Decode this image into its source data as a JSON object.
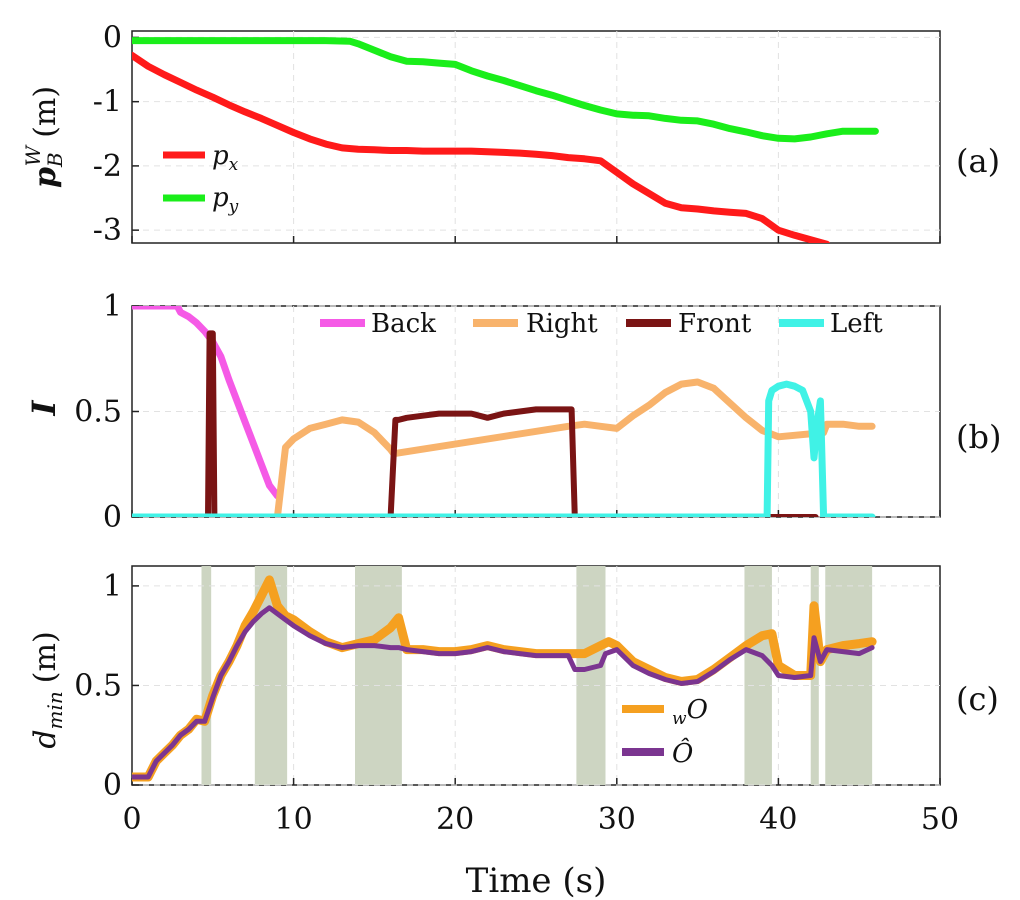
{
  "figure": {
    "xlabel": "Time (s)",
    "xticks": [
      "0",
      "10",
      "20",
      "30",
      "40",
      "50"
    ]
  },
  "colors": {
    "px": "#ff1a1a",
    "py": "#1aee1a",
    "back": "#f55ae6",
    "right": "#f8b36c",
    "front": "#7a1414",
    "left": "#40f2e6",
    "wO": "#f5a020",
    "Ohat": "#7b3590",
    "shade": "#cdd5c2"
  },
  "chart_data": [
    {
      "type": "line",
      "panel": "(a)",
      "ylabel_main": "p",
      "ylabel_sup": "W",
      "ylabel_sub": "B",
      "ylabel_unit": "(m)",
      "yticks": [
        "0",
        "-1",
        "-2",
        "-3"
      ],
      "ylim": [
        -3.2,
        0.1
      ],
      "xlim": [
        0,
        50
      ],
      "legend": {
        "placement": "left",
        "labels": [
          "p",
          "p"
        ],
        "subscripts": [
          "x",
          "y"
        ]
      },
      "series": [
        {
          "name": "p_x",
          "x": [
            0,
            1,
            2,
            3,
            4,
            5,
            6,
            7,
            8,
            9,
            10,
            11,
            12,
            13,
            14,
            15,
            16,
            17,
            18,
            19,
            20,
            21,
            22,
            23,
            24,
            25,
            26,
            27,
            28,
            29,
            30,
            31,
            32,
            33,
            34,
            35,
            36,
            37,
            38,
            39,
            40,
            41,
            42,
            43
          ],
          "y": [
            -0.28,
            -0.45,
            -0.58,
            -0.7,
            -0.82,
            -0.93,
            -1.05,
            -1.16,
            -1.26,
            -1.37,
            -1.48,
            -1.58,
            -1.66,
            -1.72,
            -1.74,
            -1.75,
            -1.76,
            -1.76,
            -1.77,
            -1.77,
            -1.77,
            -1.77,
            -1.78,
            -1.79,
            -1.8,
            -1.82,
            -1.84,
            -1.87,
            -1.89,
            -1.92,
            -2.1,
            -2.28,
            -2.43,
            -2.58,
            -2.65,
            -2.67,
            -2.7,
            -2.72,
            -2.74,
            -2.82,
            -3.0,
            -3.08,
            -3.15,
            -3.22
          ]
        },
        {
          "name": "p_y",
          "x": [
            0,
            4,
            8,
            12,
            13.5,
            14,
            15,
            16,
            17,
            18,
            19,
            20,
            21,
            22,
            23,
            24,
            25,
            26,
            27,
            28,
            29,
            30,
            31,
            32,
            33,
            34,
            35,
            36,
            37,
            38,
            39,
            40,
            41,
            42,
            43,
            44,
            45,
            46
          ],
          "y": [
            -0.05,
            -0.05,
            -0.05,
            -0.05,
            -0.06,
            -0.1,
            -0.2,
            -0.3,
            -0.37,
            -0.38,
            -0.4,
            -0.42,
            -0.52,
            -0.6,
            -0.67,
            -0.75,
            -0.83,
            -0.9,
            -0.98,
            -1.06,
            -1.13,
            -1.19,
            -1.21,
            -1.22,
            -1.26,
            -1.29,
            -1.3,
            -1.35,
            -1.42,
            -1.47,
            -1.53,
            -1.57,
            -1.58,
            -1.55,
            -1.5,
            -1.46,
            -1.46,
            -1.46
          ]
        }
      ]
    },
    {
      "type": "line",
      "panel": "(b)",
      "ylabel": "I",
      "yticks": [
        "0",
        "0.5",
        "1"
      ],
      "ylim": [
        0,
        1.0
      ],
      "xlim": [
        0,
        50
      ],
      "legend": {
        "placement": "top",
        "labels": [
          "Back",
          "Right",
          "Front",
          "Left"
        ]
      },
      "series": [
        {
          "name": "Back",
          "x": [
            0,
            1,
            2,
            2.8,
            3,
            3.5,
            4,
            4.5,
            5,
            5.5,
            6,
            6.5,
            7,
            7.5,
            8,
            8.5,
            9
          ],
          "y": [
            1,
            1,
            1,
            1,
            0.97,
            0.95,
            0.92,
            0.88,
            0.83,
            0.76,
            0.65,
            0.55,
            0.45,
            0.35,
            0.25,
            0.15,
            0.1
          ]
        },
        {
          "name": "Right",
          "x": [
            9,
            9.5,
            10,
            11,
            12,
            13,
            14,
            15,
            16,
            16.2,
            27,
            28,
            29,
            30,
            31,
            32,
            33,
            34,
            35,
            36,
            37,
            38,
            39,
            40,
            42.8,
            43,
            44,
            45,
            45.8
          ],
          "y": [
            0,
            0.33,
            0.37,
            0.42,
            0.44,
            0.46,
            0.45,
            0.4,
            0.32,
            0.3,
            0.43,
            0.44,
            0.43,
            0.42,
            0.48,
            0.53,
            0.59,
            0.63,
            0.64,
            0.61,
            0.54,
            0.47,
            0.41,
            0.38,
            0.4,
            0.44,
            0.44,
            0.43,
            0.43
          ]
        },
        {
          "name": "Front",
          "x": [
            4.6,
            4.7,
            4.8,
            5.0,
            5.1,
            16,
            16.3,
            16.5,
            17,
            18,
            19,
            20,
            21,
            22,
            23,
            24,
            25,
            26,
            27,
            27.2,
            27.4,
            39.5,
            42.3
          ],
          "y": [
            0,
            0,
            0.87,
            0.87,
            0,
            0,
            0.46,
            0.46,
            0.47,
            0.48,
            0.49,
            0.49,
            0.49,
            0.47,
            0.49,
            0.5,
            0.51,
            0.51,
            0.51,
            0.51,
            0,
            0,
            0
          ]
        },
        {
          "name": "Left",
          "x": [
            0,
            39.3,
            39.4,
            39.6,
            40,
            40.5,
            41,
            41.5,
            42,
            42.2,
            42.4,
            42.6,
            42.8,
            45.8
          ],
          "y": [
            0,
            0,
            0.55,
            0.6,
            0.62,
            0.63,
            0.62,
            0.6,
            0.5,
            0.28,
            0.45,
            0.55,
            0,
            0
          ]
        }
      ]
    },
    {
      "type": "line",
      "panel": "(c)",
      "ylabel_main": "d",
      "ylabel_sub": "min",
      "ylabel_unit": "(m)",
      "yticks": [
        "0",
        "0.5",
        "1"
      ],
      "ylim": [
        0,
        1.1
      ],
      "xlim": [
        0,
        50
      ],
      "shaded_intervals": [
        [
          4.3,
          4.9
        ],
        [
          7.6,
          9.6
        ],
        [
          13.8,
          16.7
        ],
        [
          27.5,
          29.3
        ],
        [
          37.9,
          39.6
        ],
        [
          42.0,
          42.5
        ],
        [
          42.9,
          45.8
        ]
      ],
      "legend": {
        "placement": "bottom-center",
        "labels": [
          "O",
          "Ô"
        ],
        "prefix_sub": [
          "w",
          ""
        ]
      },
      "series": [
        {
          "name": "wO",
          "x": [
            0,
            0.5,
            1,
            1.5,
            2,
            2.5,
            3,
            3.5,
            4,
            4.5,
            5,
            5.5,
            6,
            6.5,
            7,
            7.5,
            8,
            8.5,
            9,
            9.5,
            10,
            11,
            12,
            13,
            14,
            15,
            16,
            16.5,
            17,
            18,
            19,
            20,
            21,
            22,
            23,
            24,
            25,
            26,
            27,
            27.5,
            28,
            29,
            29.5,
            30,
            31,
            32,
            33,
            34,
            35,
            36,
            37,
            38,
            39,
            39.6,
            40,
            41,
            42,
            42.2,
            42.6,
            43,
            44,
            45,
            45.8
          ],
          "y": [
            0.04,
            0.04,
            0.04,
            0.12,
            0.16,
            0.2,
            0.25,
            0.28,
            0.33,
            0.32,
            0.45,
            0.55,
            0.62,
            0.7,
            0.8,
            0.87,
            0.95,
            1.03,
            0.9,
            0.85,
            0.83,
            0.77,
            0.72,
            0.69,
            0.71,
            0.73,
            0.79,
            0.84,
            0.68,
            0.68,
            0.67,
            0.67,
            0.68,
            0.7,
            0.68,
            0.67,
            0.66,
            0.66,
            0.66,
            0.66,
            0.66,
            0.7,
            0.72,
            0.7,
            0.62,
            0.58,
            0.54,
            0.52,
            0.53,
            0.58,
            0.64,
            0.7,
            0.75,
            0.76,
            0.6,
            0.55,
            0.55,
            0.9,
            0.62,
            0.68,
            0.7,
            0.71,
            0.72
          ]
        },
        {
          "name": "Ohat",
          "x": [
            0,
            0.5,
            1,
            1.5,
            2,
            2.5,
            3,
            3.5,
            4,
            4.5,
            5,
            5.5,
            6,
            6.5,
            7,
            7.5,
            8,
            8.5,
            9,
            9.5,
            10,
            11,
            12,
            13,
            14,
            15,
            16,
            16.5,
            17,
            18,
            19,
            20,
            21,
            22,
            23,
            24,
            25,
            26,
            27,
            27.4,
            27.6,
            28,
            29,
            29.3,
            30,
            31,
            32,
            33,
            34,
            35,
            36,
            37,
            38,
            39,
            39.6,
            40,
            41,
            42,
            42.2,
            42.6,
            43,
            44,
            45,
            45.8
          ],
          "y": [
            0.04,
            0.04,
            0.04,
            0.12,
            0.16,
            0.2,
            0.25,
            0.28,
            0.32,
            0.32,
            0.44,
            0.55,
            0.62,
            0.7,
            0.77,
            0.82,
            0.86,
            0.89,
            0.86,
            0.83,
            0.8,
            0.75,
            0.71,
            0.69,
            0.7,
            0.7,
            0.69,
            0.69,
            0.68,
            0.67,
            0.66,
            0.66,
            0.67,
            0.69,
            0.67,
            0.66,
            0.65,
            0.65,
            0.65,
            0.58,
            0.58,
            0.58,
            0.6,
            0.66,
            0.68,
            0.6,
            0.56,
            0.53,
            0.51,
            0.52,
            0.57,
            0.63,
            0.68,
            0.65,
            0.6,
            0.55,
            0.54,
            0.55,
            0.74,
            0.62,
            0.68,
            0.67,
            0.66,
            0.69
          ]
        }
      ]
    }
  ]
}
